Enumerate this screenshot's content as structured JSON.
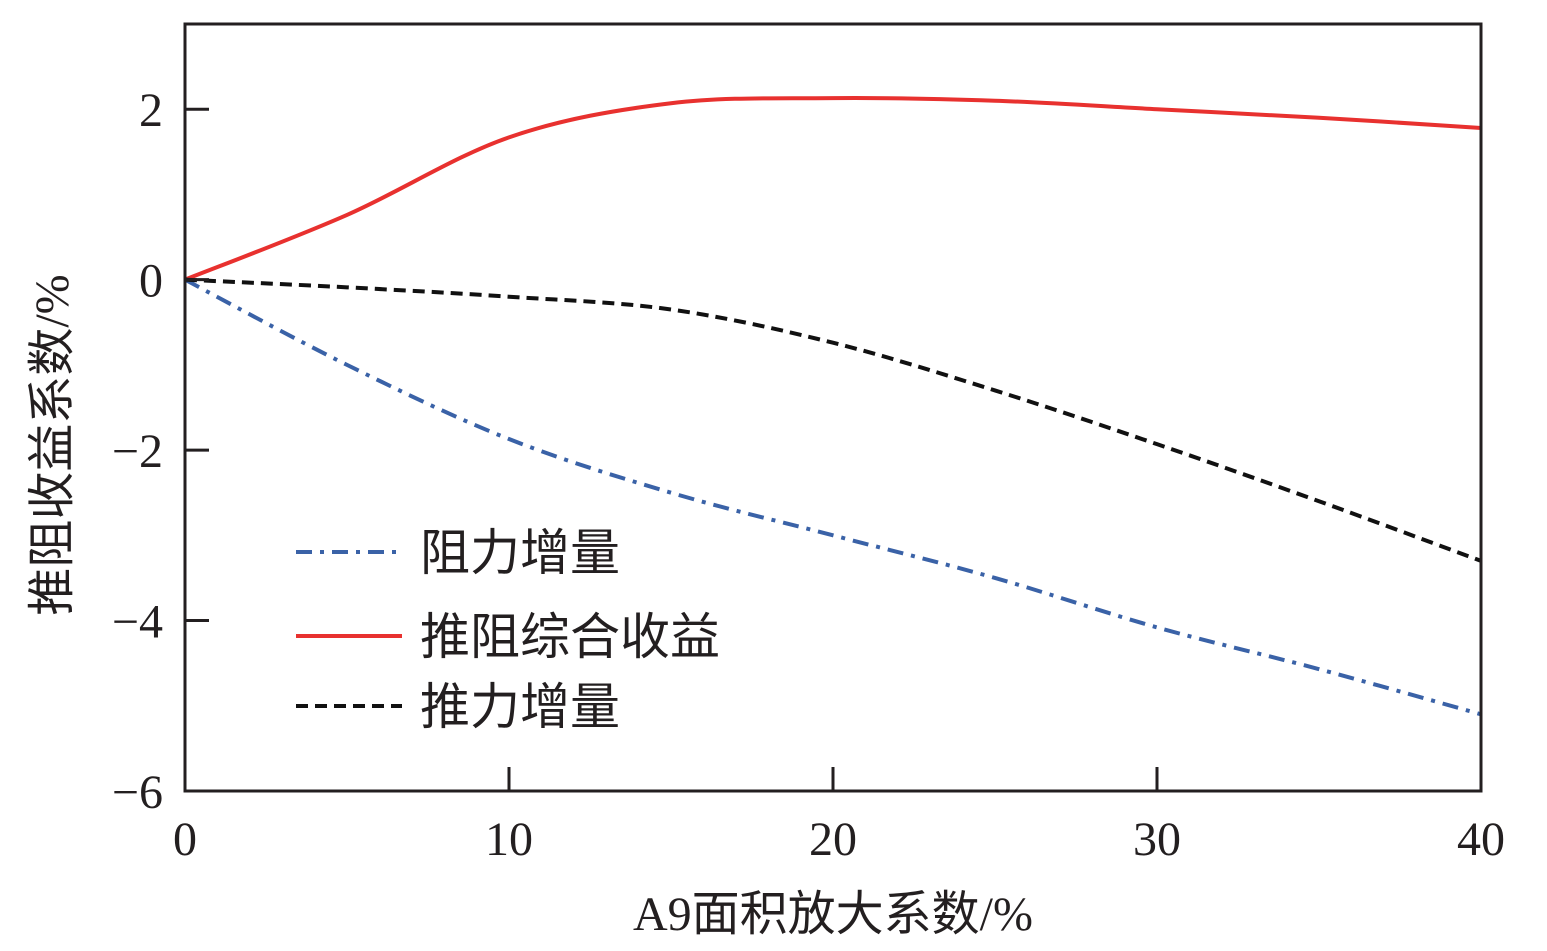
{
  "chart_data": {
    "type": "line",
    "title": "",
    "xlabel": "A9面积放大系数/%",
    "ylabel": "推阻收益系数/%",
    "xlim": [
      0,
      40
    ],
    "ylim": [
      -6,
      3
    ],
    "x_ticks": [
      0,
      10,
      20,
      30,
      40
    ],
    "y_ticks": [
      2,
      0,
      -2,
      -4,
      -6
    ],
    "x_tick_labels": [
      "0",
      "10",
      "20",
      "30",
      "40"
    ],
    "y_tick_labels": [
      "2",
      "0",
      "−2",
      "−4",
      "−6"
    ],
    "grid": false,
    "legend_position": "bottom-left",
    "x": [
      0,
      5,
      10,
      15,
      20,
      25,
      30,
      35,
      40
    ],
    "series": [
      {
        "name": "阻力增量",
        "color": "#3a62a7",
        "style": "dashdot",
        "values": [
          0,
          -1.0,
          -1.87,
          -2.5,
          -3.0,
          -3.5,
          -4.08,
          -4.57,
          -5.1
        ]
      },
      {
        "name": "推阻综合收益",
        "color": "#e8312f",
        "style": "solid",
        "values": [
          0,
          0.76,
          1.67,
          2.07,
          2.13,
          2.1,
          2.0,
          1.9,
          1.78
        ]
      },
      {
        "name": "推力增量",
        "color": "#111111",
        "style": "dashed",
        "values": [
          0,
          -0.09,
          -0.2,
          -0.35,
          -0.74,
          -1.3,
          -1.93,
          -2.6,
          -3.3
        ]
      }
    ]
  }
}
